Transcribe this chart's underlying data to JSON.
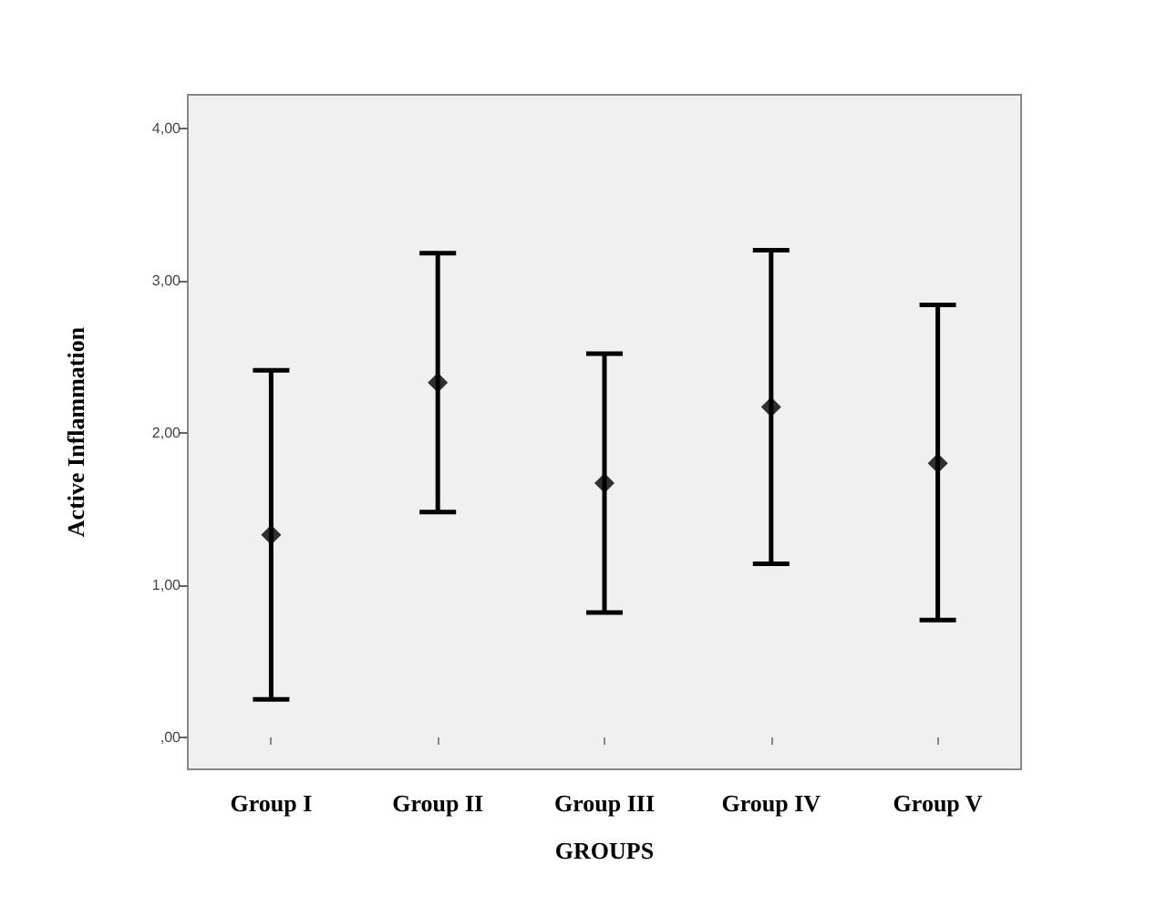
{
  "chart_data": {
    "type": "scatter",
    "xlabel": "GROUPS",
    "ylabel": "Active Inflammation",
    "categories": [
      "Group I",
      "Group II",
      "Group III",
      "Group IV",
      "Group V"
    ],
    "values": [
      1.33,
      2.33,
      1.67,
      2.17,
      1.8
    ],
    "errors": [
      [
        0.25,
        2.41
      ],
      [
        1.48,
        3.18
      ],
      [
        0.82,
        2.52
      ],
      [
        1.14,
        3.2
      ],
      [
        0.77,
        2.84
      ]
    ],
    "color": "#000000",
    "marker": "diamond",
    "grid": false,
    "ylim": [
      -0.21,
      4.22
    ],
    "yticks": [
      {
        "value": 0,
        "label": ",00"
      },
      {
        "value": 1,
        "label": "1,00"
      },
      {
        "value": 2,
        "label": "2,00"
      },
      {
        "value": 3,
        "label": "3,00"
      },
      {
        "value": 4,
        "label": "4,00"
      }
    ]
  }
}
